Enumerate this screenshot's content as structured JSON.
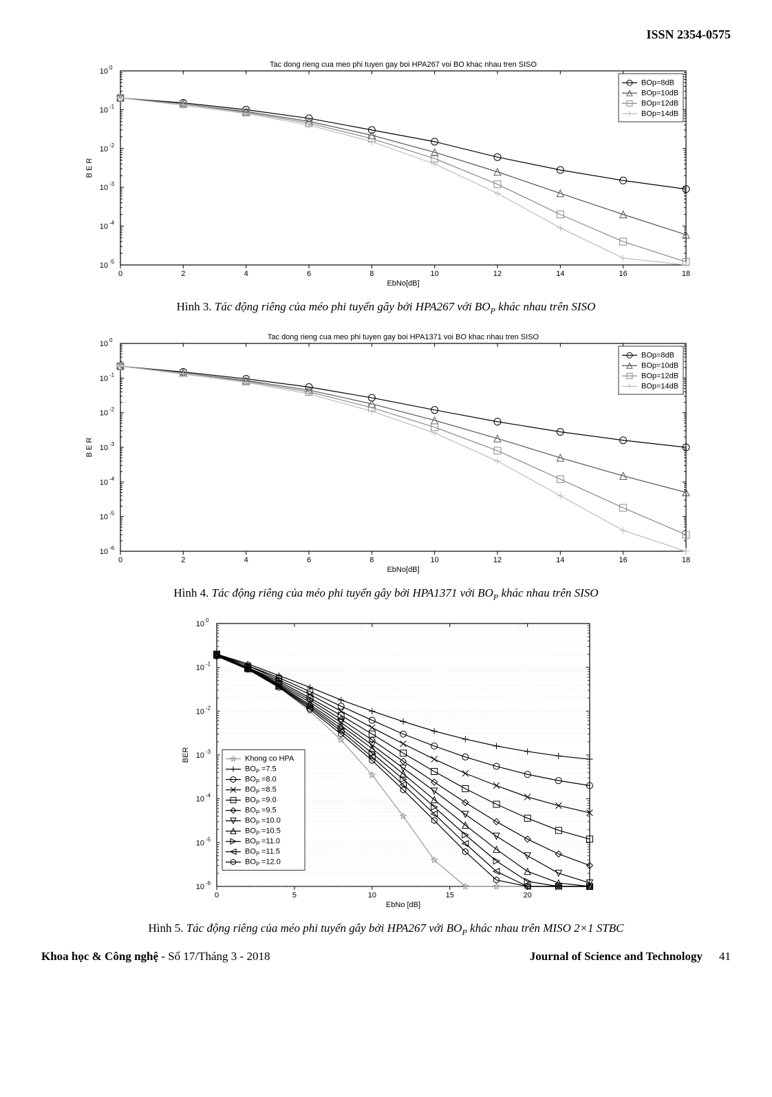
{
  "header": {
    "issn": "ISSN 2354-0575"
  },
  "footer": {
    "left_bold": "Khoa học & Công nghệ",
    "left_rest": " - Số 17/Tháng 3 - 2018",
    "right_bold": "Journal of Science and Technology",
    "page": "41"
  },
  "fig3": {
    "type": "line",
    "title": "Tac dong rieng cua meo phi tuyen gay boi HPA267 voi BO khac nhau tren SISO",
    "title_fontsize": 11,
    "xlabel": "EbNo[dB]",
    "ylabel": "B E R",
    "label_fontsize": 11,
    "xlim": [
      0,
      18
    ],
    "xtick_step": 2,
    "ylim": [
      1e-05,
      1
    ],
    "yscale": "log",
    "yticks": [
      1e-05,
      0.0001,
      0.001,
      0.01,
      0.1,
      1
    ],
    "ytick_labels": [
      "10^-5",
      "10^-4",
      "10^-3",
      "10^-2",
      "10^-1",
      "10^0"
    ],
    "background_color": "#ffffff",
    "axis_color": "#000000",
    "grid_color": "#cccccc",
    "line_width": 1.2,
    "marker_size": 5,
    "legend_pos": "top-right",
    "legend_box_border": "#000000",
    "series": [
      {
        "label": "BOp=8dB",
        "color": "#000000",
        "marker": "circle",
        "x": [
          0,
          2,
          4,
          6,
          8,
          10,
          12,
          14,
          16,
          18
        ],
        "y": [
          0.2,
          0.15,
          0.1,
          0.06,
          0.03,
          0.015,
          0.006,
          0.0028,
          0.0015,
          0.0009
        ]
      },
      {
        "label": "BOp=10dB",
        "color": "#555555",
        "marker": "triangle",
        "x": [
          0,
          2,
          4,
          6,
          8,
          10,
          12,
          14,
          16,
          18
        ],
        "y": [
          0.2,
          0.14,
          0.09,
          0.05,
          0.022,
          0.008,
          0.0025,
          0.0007,
          0.0002,
          6e-05
        ]
      },
      {
        "label": "BOp=12dB",
        "color": "#888888",
        "marker": "square",
        "x": [
          0,
          2,
          4,
          6,
          8,
          10,
          12,
          14,
          16,
          18
        ],
        "y": [
          0.2,
          0.14,
          0.085,
          0.045,
          0.018,
          0.0055,
          0.0012,
          0.0002,
          4e-05,
          1.2e-05
        ]
      },
      {
        "label": "BOp=14dB",
        "color": "#bbbbbb",
        "marker": "plus",
        "x": [
          0,
          2,
          4,
          6,
          8,
          10,
          12,
          14,
          16,
          18
        ],
        "y": [
          0.2,
          0.13,
          0.08,
          0.04,
          0.015,
          0.004,
          0.0007,
          9e-05,
          1.5e-05,
          1e-05
        ]
      }
    ],
    "caption_lead": "Hình 3. ",
    "caption_body_a": "Tác động riêng của méo phi tuyến gây bởi HPA267 với BO",
    "caption_sub": "P",
    "caption_body_b": " khác nhau trên SISO"
  },
  "fig4": {
    "type": "line",
    "title": "Tac dong rieng cua meo phi tuyen gay boi HPA1371 voi BO khac nhau tren SISO",
    "title_fontsize": 11,
    "xlabel": "EbNo[dB]",
    "ylabel": "B E R",
    "label_fontsize": 11,
    "xlim": [
      0,
      18
    ],
    "xtick_step": 2,
    "ylim": [
      1e-06,
      1
    ],
    "yscale": "log",
    "yticks": [
      1e-06,
      1e-05,
      0.0001,
      0.001,
      0.01,
      0.1,
      1
    ],
    "ytick_labels": [
      "10^-6",
      "10^-5",
      "10^-4",
      "10^-3",
      "10^-2",
      "10^-1",
      "10^0"
    ],
    "background_color": "#ffffff",
    "axis_color": "#000000",
    "grid_color": "#cccccc",
    "line_width": 1.2,
    "marker_size": 5,
    "legend_pos": "top-right",
    "legend_box_border": "#000000",
    "series": [
      {
        "label": "BOp=8dB",
        "color": "#000000",
        "marker": "circle",
        "x": [
          0,
          2,
          4,
          6,
          8,
          10,
          12,
          14,
          16,
          18
        ],
        "y": [
          0.22,
          0.15,
          0.095,
          0.055,
          0.027,
          0.012,
          0.0055,
          0.0028,
          0.0016,
          0.001
        ]
      },
      {
        "label": "BOp=10dB",
        "color": "#555555",
        "marker": "triangle",
        "x": [
          0,
          2,
          4,
          6,
          8,
          10,
          12,
          14,
          16,
          18
        ],
        "y": [
          0.22,
          0.14,
          0.085,
          0.045,
          0.018,
          0.006,
          0.0018,
          0.0005,
          0.00015,
          5e-05
        ]
      },
      {
        "label": "BOp=12dB",
        "color": "#888888",
        "marker": "square",
        "x": [
          0,
          2,
          4,
          6,
          8,
          10,
          12,
          14,
          16,
          18
        ],
        "y": [
          0.22,
          0.14,
          0.08,
          0.04,
          0.014,
          0.0038,
          0.0008,
          0.00012,
          1.8e-05,
          3e-06
        ]
      },
      {
        "label": "BOp=14dB",
        "color": "#bbbbbb",
        "marker": "plus",
        "x": [
          0,
          2,
          4,
          6,
          8,
          10,
          12,
          14,
          16,
          18
        ],
        "y": [
          0.22,
          0.13,
          0.075,
          0.035,
          0.011,
          0.0026,
          0.0004,
          4e-05,
          4e-06,
          1e-06
        ]
      }
    ],
    "caption_lead": "Hình 4. ",
    "caption_body_a": "Tác động riêng của méo phi tuyến gây bởi HPA1371 với BO",
    "caption_sub": "P",
    "caption_body_b": " khác nhau trên SISO"
  },
  "fig5": {
    "type": "line",
    "title": "",
    "xlabel": "EbNo [dB]",
    "ylabel": "BER",
    "label_fontsize": 11,
    "xlim": [
      0,
      24
    ],
    "xticks": [
      0,
      5,
      10,
      15,
      20
    ],
    "ylim": [
      1e-06,
      1
    ],
    "yscale": "log",
    "yticks": [
      1e-06,
      1e-05,
      0.0001,
      0.001,
      0.01,
      0.1,
      1
    ],
    "ytick_labels": [
      "10^-6",
      "10^-5",
      "10^-4",
      "10^-3",
      "10^-2",
      "10^-1",
      "10^0"
    ],
    "background_color": "#ffffff",
    "axis_color": "#000000",
    "grid_color": "#cccccc",
    "grid_style_minor": "dotted",
    "line_width": 1.2,
    "marker_size": 4.5,
    "legend_pos": "left-mid",
    "legend_box_border": "#000000",
    "series": [
      {
        "label": "Khong co HPA",
        "color": "#999999",
        "marker": "star",
        "x": [
          0,
          2,
          4,
          6,
          8,
          10,
          12,
          14,
          16,
          18,
          20,
          22,
          24
        ],
        "y": [
          0.18,
          0.09,
          0.035,
          0.01,
          0.0022,
          0.00035,
          4e-05,
          4e-06,
          1e-06,
          1e-06,
          1e-06,
          1e-06,
          1e-06
        ]
      },
      {
        "label": "BO_P=7.5",
        "color": "#000000",
        "marker": "plus",
        "x": [
          0,
          2,
          4,
          6,
          8,
          10,
          12,
          14,
          16,
          18,
          20,
          22,
          24
        ],
        "y": [
          0.2,
          0.12,
          0.065,
          0.035,
          0.018,
          0.01,
          0.0058,
          0.0035,
          0.0023,
          0.0016,
          0.0012,
          0.00095,
          0.0008
        ]
      },
      {
        "label": "BO_P=8.0",
        "color": "#000000",
        "marker": "circle",
        "x": [
          0,
          2,
          4,
          6,
          8,
          10,
          12,
          14,
          16,
          18,
          20,
          22,
          24
        ],
        "y": [
          0.2,
          0.11,
          0.058,
          0.028,
          0.013,
          0.0062,
          0.003,
          0.0016,
          0.0009,
          0.00055,
          0.00036,
          0.00026,
          0.0002
        ]
      },
      {
        "label": "BO_P=8.5",
        "color": "#000000",
        "marker": "x",
        "x": [
          0,
          2,
          4,
          6,
          8,
          10,
          12,
          14,
          16,
          18,
          20,
          22,
          24
        ],
        "y": [
          0.2,
          0.11,
          0.052,
          0.024,
          0.01,
          0.0042,
          0.0018,
          0.0008,
          0.00038,
          0.0002,
          0.00011,
          7e-05,
          4.8e-05
        ]
      },
      {
        "label": "BO_P=9.0",
        "color": "#000000",
        "marker": "square",
        "x": [
          0,
          2,
          4,
          6,
          8,
          10,
          12,
          14,
          16,
          18,
          20,
          22,
          24
        ],
        "y": [
          0.2,
          0.1,
          0.048,
          0.02,
          0.008,
          0.003,
          0.0011,
          0.00042,
          0.00017,
          7.5e-05,
          3.6e-05,
          1.9e-05,
          1.2e-05
        ]
      },
      {
        "label": "BO_P=9.5",
        "color": "#000000",
        "marker": "diamond",
        "x": [
          0,
          2,
          4,
          6,
          8,
          10,
          12,
          14,
          16,
          18,
          20,
          22,
          24
        ],
        "y": [
          0.19,
          0.1,
          0.044,
          0.018,
          0.0065,
          0.0022,
          0.00072,
          0.00024,
          8.2e-05,
          3e-05,
          1.2e-05,
          5.5e-06,
          3e-06
        ]
      },
      {
        "label": "BO_P=10.0",
        "color": "#000000",
        "marker": "tri-down",
        "x": [
          0,
          2,
          4,
          6,
          8,
          10,
          12,
          14,
          16,
          18,
          20,
          22,
          24
        ],
        "y": [
          0.19,
          0.098,
          0.041,
          0.016,
          0.0055,
          0.0017,
          0.0005,
          0.00015,
          4.4e-05,
          1.4e-05,
          5e-06,
          2e-06,
          1.2e-06
        ]
      },
      {
        "label": "BO_P=10.5",
        "color": "#000000",
        "marker": "triangle",
        "x": [
          0,
          2,
          4,
          6,
          8,
          10,
          12,
          14,
          16,
          18,
          20,
          22,
          24
        ],
        "y": [
          0.19,
          0.095,
          0.039,
          0.014,
          0.0047,
          0.0014,
          0.00037,
          9.5e-05,
          2.5e-05,
          7e-06,
          2.2e-06,
          1.2e-06,
          1e-06
        ]
      },
      {
        "label": "BO_P=11.0",
        "color": "#000000",
        "marker": "tri-right",
        "x": [
          0,
          2,
          4,
          6,
          8,
          10,
          12,
          14,
          16,
          18,
          20,
          22,
          24
        ],
        "y": [
          0.19,
          0.093,
          0.037,
          0.013,
          0.004,
          0.0011,
          0.00028,
          6.5e-05,
          1.5e-05,
          3.8e-06,
          1.3e-06,
          1e-06,
          1e-06
        ]
      },
      {
        "label": "BO_P=11.5",
        "color": "#000000",
        "marker": "tri-left",
        "x": [
          0,
          2,
          4,
          6,
          8,
          10,
          12,
          14,
          16,
          18,
          20,
          22,
          24
        ],
        "y": [
          0.19,
          0.091,
          0.036,
          0.012,
          0.0035,
          0.0009,
          0.00021,
          4.5e-05,
          9.5e-06,
          2.2e-06,
          1e-06,
          1e-06,
          1e-06
        ]
      },
      {
        "label": "BO_P=12.0",
        "color": "#000000",
        "marker": "hex",
        "x": [
          0,
          2,
          4,
          6,
          8,
          10,
          12,
          14,
          16,
          18,
          20,
          22,
          24
        ],
        "y": [
          0.18,
          0.09,
          0.035,
          0.011,
          0.003,
          0.00075,
          0.00016,
          3.2e-05,
          6.2e-06,
          1.4e-06,
          1e-06,
          1e-06,
          1e-06
        ]
      }
    ],
    "caption_lead": "Hình 5. ",
    "caption_body_a": "Tác động riêng của méo phi tuyến gây bởi HPA267 với BO",
    "caption_sub": "P",
    "caption_body_b": " khác nhau trên MISO 2×1 STBC"
  }
}
